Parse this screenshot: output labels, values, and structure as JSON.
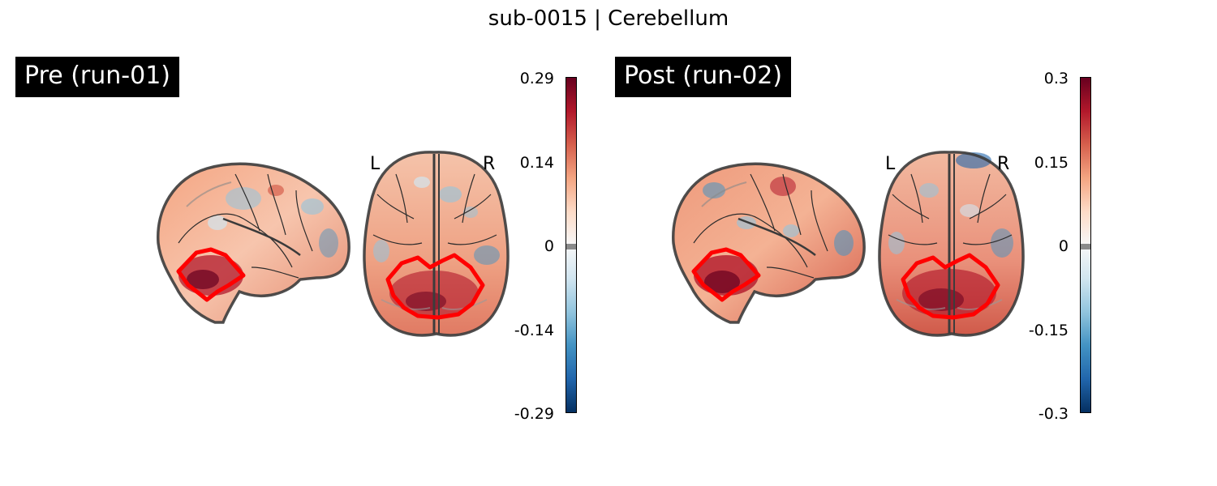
{
  "figure": {
    "title": "sub-0015 | Cerebellum"
  },
  "colors": {
    "colormap": [
      "#053061",
      "#2166ac",
      "#4393c3",
      "#92c5de",
      "#d1e5f0",
      "#f7f7f7",
      "#fddbc7",
      "#f4a582",
      "#d6604d",
      "#b2182b",
      "#67001f"
    ],
    "roi_outline": "#ff0000",
    "brain_outline": "#3c3c3c",
    "label_background": "#000000"
  },
  "panels": [
    {
      "label": "Pre (run-01)",
      "orientation_left": "L",
      "orientation_right": "R",
      "colorbar_ticks": [
        "0.29",
        "0.14",
        "0",
        "-0.14",
        "-0.29"
      ]
    },
    {
      "label": "Post (run-02)",
      "orientation_left": "L",
      "orientation_right": "R",
      "colorbar_ticks": [
        "0.3",
        "0.15",
        "0",
        "-0.15",
        "-0.3"
      ]
    }
  ]
}
